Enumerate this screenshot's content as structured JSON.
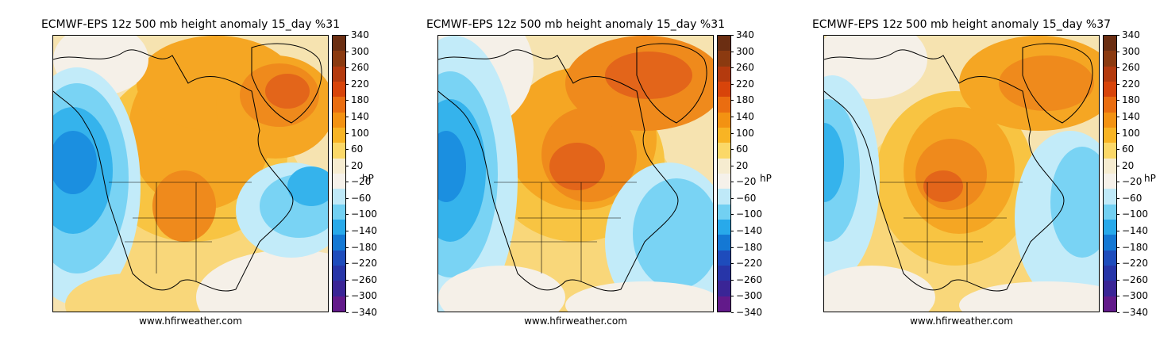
{
  "panels": [
    {
      "title": "ECMWF-EPS 12z 500 mb height anomaly 15_day %31",
      "source": "www.hfirweather.com",
      "colorbar_unit": "hP"
    },
    {
      "title": "ECMWF-EPS 12z 500 mb height anomaly 15_day %31",
      "source": "www.hfirweather.com",
      "colorbar_unit": "hP"
    },
    {
      "title": "ECMWF-EPS 12z 500 mb height anomaly 15_day %37",
      "source": "www.hfirweather.com",
      "colorbar_unit": "hP"
    }
  ],
  "colorbar": {
    "tick_labels": [
      "340",
      "300",
      "260",
      "220",
      "180",
      "140",
      "100",
      "60",
      "20",
      "−20",
      "−60",
      "−100",
      "−140",
      "−180",
      "−220",
      "−260",
      "−300",
      "−340"
    ],
    "colors": [
      "#6b2e12",
      "#8b3a10",
      "#b43a0e",
      "#d8440a",
      "#ea6d10",
      "#f39212",
      "#f8b424",
      "#fbd868",
      "#f6ecd0",
      "#f5f1ea",
      "#bfe9f8",
      "#72d0f2",
      "#28a9ea",
      "#1478d4",
      "#1e4cbc",
      "#2735a8",
      "#3a2596",
      "#621a8a"
    ]
  },
  "colors": {
    "land_outline": "#000000",
    "background": "#f5efe5"
  }
}
